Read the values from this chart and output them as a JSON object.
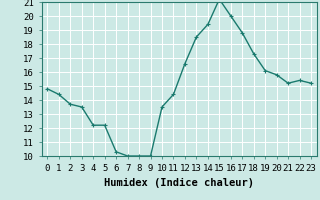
{
  "x": [
    0,
    1,
    2,
    3,
    4,
    5,
    6,
    7,
    8,
    9,
    10,
    11,
    12,
    13,
    14,
    15,
    16,
    17,
    18,
    19,
    20,
    21,
    22,
    23
  ],
  "y": [
    14.8,
    14.4,
    13.7,
    13.5,
    12.2,
    12.2,
    10.3,
    10.0,
    10.0,
    10.0,
    13.5,
    14.4,
    16.6,
    18.5,
    19.4,
    21.2,
    20.0,
    18.8,
    17.3,
    16.1,
    15.8,
    15.2,
    15.4,
    15.2
  ],
  "line_color": "#1a7a6e",
  "marker": "+",
  "marker_size": 3,
  "bg_color": "#cce9e5",
  "grid_color": "#ffffff",
  "xlabel": "Humidex (Indice chaleur)",
  "xlim": [
    -0.5,
    23.5
  ],
  "ylim": [
    10,
    21
  ],
  "yticks": [
    10,
    11,
    12,
    13,
    14,
    15,
    16,
    17,
    18,
    19,
    20,
    21
  ],
  "xticks": [
    0,
    1,
    2,
    3,
    4,
    5,
    6,
    7,
    8,
    9,
    10,
    11,
    12,
    13,
    14,
    15,
    16,
    17,
    18,
    19,
    20,
    21,
    22,
    23
  ],
  "xlabel_fontsize": 7.5,
  "tick_fontsize": 6.5,
  "line_width": 1.0,
  "marker_edge_width": 0.8
}
